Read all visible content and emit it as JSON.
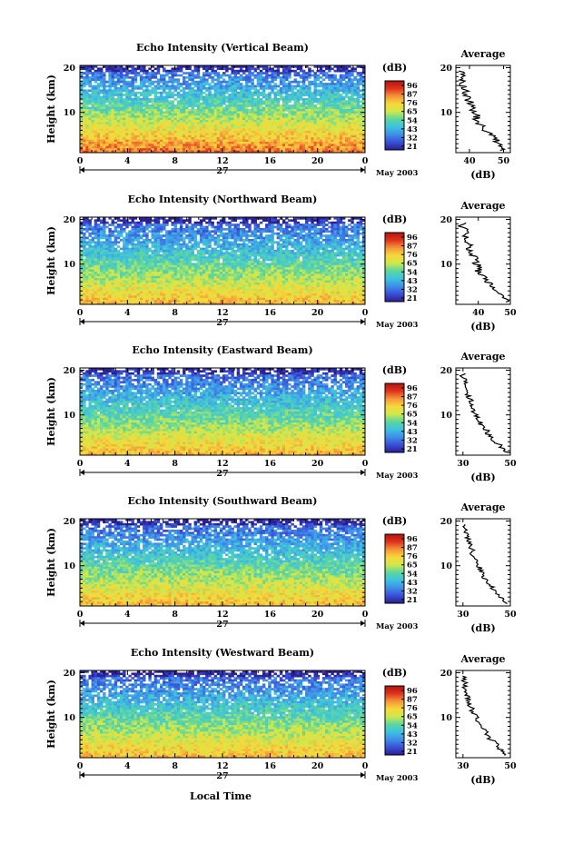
{
  "x_label": "Local Time",
  "y_label": "Height (km)",
  "date_day": "27",
  "date_month_year": "May 2003",
  "colorbar_label": "(dB)",
  "colorbar_ticks": [
    "96",
    "87",
    "76",
    "65",
    "54",
    "43",
    "32",
    "21"
  ],
  "avg_title": "Average",
  "avg_xlabel": "(dB)",
  "colors": {
    "colormap": [
      "#2a1f8f",
      "#3a4fd8",
      "#3f8fe8",
      "#3ec2e0",
      "#5ad6a0",
      "#cfe84a",
      "#f7d83a",
      "#f5963a",
      "#e0321e",
      "#b31410"
    ]
  },
  "chart_data": [
    {
      "type": "heatmap",
      "title": "Echo Intensity (Vertical Beam)",
      "x_ticks": [
        "0",
        "4",
        "8",
        "12",
        "16",
        "20",
        "0"
      ],
      "xlim": [
        0,
        24
      ],
      "y_ticks": [
        "20",
        "10"
      ],
      "ylim": [
        1,
        20.5
      ],
      "value_range": [
        21,
        96
      ],
      "profile": {
        "xlim": [
          36,
          52
        ],
        "x_ticks": [
          "40",
          "50"
        ],
        "heights": [
          1.5,
          2.5,
          3.5,
          4.5,
          5.5,
          6.5,
          7.5,
          8.5,
          9.5,
          10.5,
          11.5,
          12.5,
          13.5,
          14.5,
          15.5,
          16.5,
          17.5,
          18.5,
          19.5
        ],
        "values": [
          50,
          49,
          48,
          47,
          45,
          44,
          43,
          42,
          42,
          41,
          41,
          40,
          39,
          39,
          38,
          38,
          38,
          38,
          37
        ]
      }
    },
    {
      "type": "heatmap",
      "title": "Echo Intensity (Northward Beam)",
      "x_ticks": [
        "0",
        "4",
        "8",
        "12",
        "16",
        "20",
        "0"
      ],
      "xlim": [
        0,
        24
      ],
      "y_ticks": [
        "20",
        "10"
      ],
      "ylim": [
        1,
        20.5
      ],
      "value_range": [
        21,
        96
      ],
      "profile": {
        "xlim": [
          33,
          50
        ],
        "x_ticks": [
          "40",
          "50"
        ],
        "heights": [
          1.5,
          2.5,
          3.5,
          4.5,
          5.5,
          6.5,
          7.5,
          8.5,
          9.5,
          10.5,
          11.5,
          12.5,
          13.5,
          14.5,
          15.5,
          16.5,
          17.5,
          18.5,
          19.5
        ],
        "values": [
          49,
          48,
          47,
          45,
          44,
          42,
          41,
          40,
          40,
          39,
          39,
          38,
          37,
          37,
          36,
          36,
          36,
          35,
          35
        ]
      }
    },
    {
      "type": "heatmap",
      "title": "Echo Intensity (Eastward Beam)",
      "x_ticks": [
        "0",
        "4",
        "8",
        "12",
        "16",
        "20",
        "0"
      ],
      "xlim": [
        0,
        24
      ],
      "y_ticks": [
        "20",
        "10"
      ],
      "ylim": [
        1,
        20.5
      ],
      "value_range": [
        21,
        96
      ],
      "profile": {
        "xlim": [
          27,
          50
        ],
        "x_ticks": [
          "30",
          "50"
        ],
        "heights": [
          1.5,
          2.5,
          3.5,
          4.5,
          5.5,
          6.5,
          7.5,
          8.5,
          9.5,
          10.5,
          11.5,
          12.5,
          13.5,
          14.5,
          15.5,
          16.5,
          17.5,
          18.5,
          19.5
        ],
        "values": [
          49,
          47,
          45,
          43,
          41,
          40,
          38,
          37,
          36,
          35,
          34,
          34,
          33,
          32,
          32,
          31,
          31,
          30,
          30
        ]
      }
    },
    {
      "type": "heatmap",
      "title": "Echo Intensity (Southward Beam)",
      "x_ticks": [
        "0",
        "4",
        "8",
        "12",
        "16",
        "20",
        "0"
      ],
      "xlim": [
        0,
        24
      ],
      "y_ticks": [
        "20",
        "10"
      ],
      "ylim": [
        1,
        20.5
      ],
      "value_range": [
        21,
        96
      ],
      "profile": {
        "xlim": [
          27,
          50
        ],
        "x_ticks": [
          "30",
          "50"
        ],
        "heights": [
          1.5,
          2.5,
          3.5,
          4.5,
          5.5,
          6.5,
          7.5,
          8.5,
          9.5,
          10.5,
          11.5,
          12.5,
          13.5,
          14.5,
          15.5,
          16.5,
          17.5,
          18.5,
          19.5
        ],
        "values": [
          48,
          47,
          45,
          43,
          42,
          40,
          39,
          38,
          37,
          36,
          35,
          34,
          34,
          33,
          32,
          32,
          31,
          31,
          30
        ]
      }
    },
    {
      "type": "heatmap",
      "title": "Echo Intensity (Westward Beam)",
      "x_ticks": [
        "0",
        "4",
        "8",
        "12",
        "16",
        "20",
        "0"
      ],
      "xlim": [
        0,
        24
      ],
      "y_ticks": [
        "20",
        "10"
      ],
      "ylim": [
        1,
        20.5
      ],
      "value_range": [
        21,
        96
      ],
      "profile": {
        "xlim": [
          27,
          50
        ],
        "x_ticks": [
          "30",
          "50"
        ],
        "heights": [
          1.5,
          2.5,
          3.5,
          4.5,
          5.5,
          6.5,
          7.5,
          8.5,
          9.5,
          10.5,
          11.5,
          12.5,
          13.5,
          14.5,
          15.5,
          16.5,
          17.5,
          18.5,
          19.5
        ],
        "values": [
          48,
          46,
          45,
          43,
          41,
          40,
          38,
          37,
          36,
          35,
          34,
          33,
          33,
          32,
          32,
          31,
          31,
          30,
          30
        ]
      }
    }
  ]
}
